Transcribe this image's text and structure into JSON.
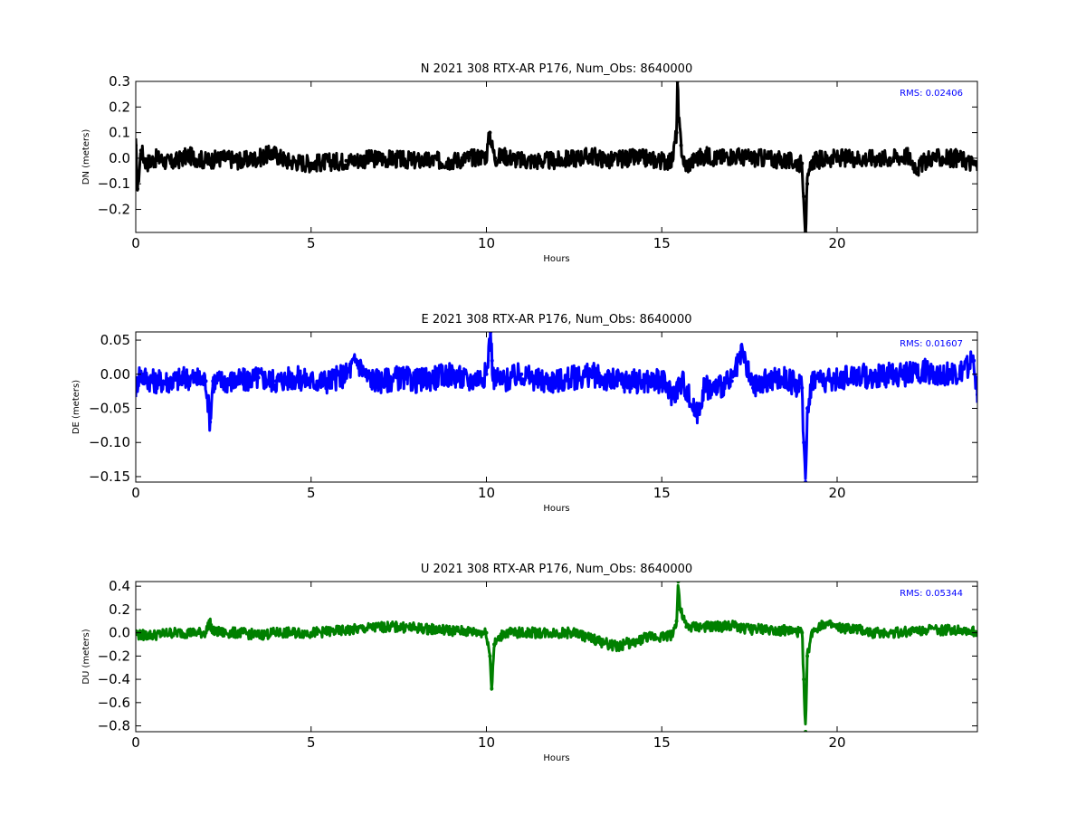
{
  "chart_data": [
    {
      "type": "line",
      "title": "N 2021 308 RTX-AR  P176, Num_Obs: 8640000",
      "xlabel": "Hours",
      "ylabel": "DN (meters)",
      "xlim": [
        0,
        24
      ],
      "ylim": [
        -0.29,
        0.3
      ],
      "xticks": [
        0,
        5,
        10,
        15,
        20
      ],
      "xtick_labels": [
        "0",
        "5",
        "10",
        "15",
        "20"
      ],
      "yticks": [
        -0.2,
        -0.1,
        0.0,
        0.1,
        0.2,
        0.3
      ],
      "ytick_labels": [
        "−0.2",
        "−0.1",
        "0.0",
        "0.1",
        "0.2",
        "0.3"
      ],
      "rms_label": "RMS:  0.02406",
      "rms_color": "#0000ff",
      "grid": false,
      "series": [
        {
          "color": "#000000",
          "x": [
            0.0,
            0.05,
            0.15,
            0.3,
            0.6,
            1.0,
            1.5,
            2.0,
            2.5,
            3.0,
            3.5,
            3.9,
            4.3,
            5.0,
            6.0,
            7.0,
            8.0,
            9.0,
            9.5,
            10.0,
            10.1,
            10.15,
            10.25,
            10.5,
            11.0,
            12.0,
            12.5,
            13.0,
            13.5,
            14.0,
            14.5,
            15.0,
            15.3,
            15.42,
            15.45,
            15.48,
            15.55,
            15.65,
            15.8,
            16.0,
            16.3,
            16.6,
            17.0,
            17.5,
            18.0,
            18.5,
            19.0,
            19.05,
            19.1,
            19.15,
            19.3,
            19.8,
            20.5,
            21.0,
            21.5,
            22.0,
            22.3,
            22.6,
            23.0,
            23.5,
            24.0
          ],
          "y": [
            0.05,
            -0.12,
            0.03,
            -0.02,
            0.0,
            -0.02,
            0.01,
            -0.01,
            0.0,
            -0.01,
            0.0,
            0.02,
            -0.01,
            -0.02,
            -0.01,
            0.0,
            -0.01,
            -0.01,
            0.0,
            0.01,
            0.1,
            0.05,
            0.0,
            0.01,
            -0.01,
            -0.01,
            0.0,
            0.01,
            -0.01,
            0.0,
            0.0,
            -0.01,
            -0.01,
            0.1,
            0.3,
            0.15,
            0.05,
            -0.03,
            -0.02,
            0.0,
            0.01,
            0.0,
            0.01,
            0.0,
            0.0,
            -0.01,
            -0.02,
            -0.15,
            -0.29,
            -0.1,
            -0.01,
            0.0,
            0.0,
            0.0,
            0.0,
            0.01,
            -0.04,
            0.0,
            0.0,
            0.0,
            -0.03
          ],
          "band": 0.035
        }
      ]
    },
    {
      "type": "line",
      "title": "E 2021 308 RTX-AR  P176, Num_Obs: 8640000",
      "xlabel": "Hours",
      "ylabel": "DE (meters)",
      "xlim": [
        0,
        24
      ],
      "ylim": [
        -0.158,
        0.062
      ],
      "xticks": [
        0,
        5,
        10,
        15,
        20
      ],
      "xtick_labels": [
        "0",
        "5",
        "10",
        "15",
        "20"
      ],
      "yticks": [
        -0.15,
        -0.1,
        -0.05,
        0.0,
        0.05
      ],
      "ytick_labels": [
        "−0.15",
        "−0.10",
        "−0.05",
        "0.00",
        "0.05"
      ],
      "rms_label": "RMS:  0.01607",
      "rms_color": "#0000ff",
      "grid": false,
      "series": [
        {
          "color": "#0000ff",
          "x": [
            0.0,
            0.1,
            0.5,
            1.0,
            1.5,
            2.0,
            2.08,
            2.12,
            2.2,
            2.5,
            3.0,
            3.5,
            4.0,
            4.5,
            5.0,
            5.5,
            6.0,
            6.3,
            6.6,
            7.0,
            7.5,
            8.0,
            8.5,
            9.0,
            9.5,
            10.0,
            10.12,
            10.16,
            10.2,
            10.5,
            11.0,
            11.5,
            12.0,
            12.5,
            13.0,
            13.5,
            14.0,
            14.5,
            15.0,
            15.3,
            15.6,
            15.9,
            16.0,
            16.2,
            16.5,
            17.0,
            17.3,
            17.6,
            18.0,
            18.5,
            19.0,
            19.05,
            19.1,
            19.15,
            19.3,
            19.8,
            20.5,
            21.0,
            21.5,
            22.0,
            22.5,
            23.0,
            23.5,
            23.9,
            24.0
          ],
          "y": [
            -0.02,
            0.0,
            -0.01,
            -0.01,
            -0.005,
            -0.01,
            -0.05,
            -0.07,
            -0.01,
            -0.01,
            -0.01,
            -0.005,
            -0.01,
            -0.005,
            -0.01,
            -0.01,
            0.0,
            0.02,
            -0.005,
            -0.01,
            -0.005,
            -0.01,
            -0.005,
            0.0,
            -0.01,
            0.0,
            0.062,
            0.02,
            -0.005,
            -0.01,
            0.0,
            -0.01,
            -0.01,
            -0.005,
            0.0,
            -0.01,
            -0.01,
            -0.01,
            -0.01,
            -0.03,
            -0.01,
            -0.05,
            -0.06,
            -0.02,
            -0.02,
            -0.01,
            0.03,
            -0.02,
            -0.01,
            -0.005,
            -0.02,
            -0.1,
            -0.158,
            -0.05,
            -0.005,
            -0.01,
            0.0,
            -0.005,
            0.0,
            0.0,
            0.005,
            0.0,
            0.0,
            0.02,
            -0.03
          ],
          "band": 0.018
        }
      ]
    },
    {
      "type": "line",
      "title": "U 2021 308 RTX-AR  P176, Num_Obs: 8640000",
      "xlabel": "Hours",
      "ylabel": "DU (meters)",
      "xlim": [
        0,
        24
      ],
      "ylim": [
        -0.85,
        0.44
      ],
      "xticks": [
        0,
        5,
        10,
        15,
        20
      ],
      "xtick_labels": [
        "0",
        "5",
        "10",
        "15",
        "20"
      ],
      "yticks": [
        -0.8,
        -0.6,
        -0.4,
        -0.2,
        0.0,
        0.2,
        0.4
      ],
      "ytick_labels": [
        "−0.8",
        "−0.6",
        "−0.4",
        "−0.2",
        "0.0",
        "0.2",
        "0.4"
      ],
      "rms_label": "RMS:  0.05344",
      "rms_color": "#0000ff",
      "grid": false,
      "series": [
        {
          "color": "#008000",
          "x": [
            0.0,
            0.1,
            0.5,
            1.0,
            1.5,
            2.0,
            2.1,
            2.2,
            2.5,
            3.0,
            3.5,
            4.0,
            5.0,
            6.0,
            7.0,
            7.5,
            8.0,
            8.5,
            9.0,
            9.5,
            10.0,
            10.1,
            10.15,
            10.22,
            10.5,
            11.0,
            12.0,
            12.5,
            13.0,
            13.5,
            13.8,
            14.0,
            14.2,
            14.5,
            15.0,
            15.3,
            15.42,
            15.47,
            15.52,
            15.7,
            16.0,
            16.5,
            17.0,
            17.5,
            18.0,
            18.5,
            19.0,
            19.05,
            19.1,
            19.15,
            19.3,
            19.6,
            20.0,
            20.5,
            21.0,
            21.5,
            22.0,
            22.5,
            23.0,
            23.5,
            24.0
          ],
          "y": [
            0.0,
            -0.02,
            -0.02,
            0.0,
            0.0,
            0.0,
            0.1,
            0.01,
            0.0,
            0.0,
            -0.02,
            0.0,
            0.0,
            0.02,
            0.05,
            0.05,
            0.04,
            0.03,
            0.02,
            0.01,
            0.0,
            -0.2,
            -0.48,
            -0.1,
            0.0,
            0.0,
            0.0,
            0.0,
            -0.05,
            -0.1,
            -0.12,
            -0.08,
            -0.1,
            -0.04,
            -0.03,
            -0.02,
            0.1,
            0.44,
            0.2,
            0.05,
            0.05,
            0.05,
            0.06,
            0.03,
            0.03,
            0.02,
            0.0,
            -0.4,
            -0.85,
            -0.2,
            0.02,
            0.08,
            0.04,
            0.03,
            0.0,
            0.0,
            0.01,
            0.03,
            0.02,
            0.03,
            0.0
          ],
          "band": 0.045
        }
      ]
    }
  ]
}
